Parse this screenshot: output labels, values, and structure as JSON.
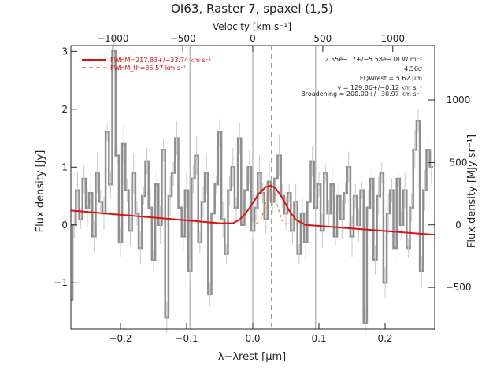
{
  "chart_data": {
    "type": "line",
    "title": "OI63, Raster 7, spaxel (1,5)",
    "xlabel": "λ−λrest [µm]",
    "ylabel_left": "Flux density [Jy]",
    "ylabel_right": "Flux density [MJy sr⁻¹]",
    "xlabel_top": "Velocity [km s⁻¹]",
    "xlim": [
      -0.275,
      0.275
    ],
    "ylim": [
      -1.8,
      3.1
    ],
    "x_ticks": [
      -0.2,
      -0.1,
      0.0,
      0.1,
      0.2
    ],
    "x_tick_labels": [
      "−0.2",
      "−0.1",
      "0.0",
      "0.1",
      "0.2"
    ],
    "y_ticks": [
      -1,
      0,
      1,
      2,
      3
    ],
    "y_tick_labels": [
      "−1",
      "0",
      "1",
      "2",
      "3"
    ],
    "top_ticks_x": [
      -0.2116,
      -0.1058,
      0.0,
      0.1058,
      0.2116
    ],
    "top_tick_labels": [
      "−1000",
      "−500",
      "0",
      "500",
      "1000"
    ],
    "right_ticks_y": [
      -1.08,
      0.0,
      1.08,
      2.16
    ],
    "right_tick_labels": [
      "−500",
      "0",
      "500",
      "1000"
    ],
    "vertical_lines": [
      -0.095,
      0.0,
      0.095
    ],
    "dashed_line_x": 0.028,
    "legend": [
      "FWHM=217.83+/−33.74 km s⁻¹",
      "FWHM_th=86.57 km s⁻¹"
    ],
    "annotations": [
      "2.55e−17+/−5.58e−18 W m⁻²",
      "4.56σ",
      "EQWrest = 5.62 µm",
      "v = 129.86+/−0.12 km s⁻¹",
      "Broadening = 200.00+/−30.97 km s⁻¹"
    ],
    "series": [
      {
        "name": "FWHM=217.83+/−33.74 km s⁻¹",
        "style": "solid",
        "x": [
          -0.275,
          -0.05,
          -0.03,
          -0.02,
          -0.01,
          0.0,
          0.01,
          0.02,
          0.028,
          0.035,
          0.045,
          0.055,
          0.065,
          0.08,
          0.275
        ],
        "y": [
          0.25,
          0.03,
          0.03,
          0.09,
          0.21,
          0.38,
          0.55,
          0.66,
          0.68,
          0.63,
          0.46,
          0.25,
          0.09,
          0.0,
          -0.17
        ]
      },
      {
        "name": "FWHM_th=86.57 km s⁻¹",
        "style": "dashed",
        "x": [
          0.005,
          0.012,
          0.018,
          0.023,
          0.028,
          0.033,
          0.038,
          0.044,
          0.051
        ],
        "y": [
          0.02,
          0.08,
          0.3,
          0.55,
          0.62,
          0.55,
          0.3,
          0.08,
          0.02
        ]
      },
      {
        "name": "data",
        "style": "step",
        "x": [
          -0.275,
          -0.27,
          -0.265,
          -0.26,
          -0.255,
          -0.25,
          -0.245,
          -0.24,
          -0.235,
          -0.23,
          -0.225,
          -0.22,
          -0.215,
          -0.21,
          -0.205,
          -0.2,
          -0.195,
          -0.19,
          -0.185,
          -0.18,
          -0.175,
          -0.17,
          -0.165,
          -0.16,
          -0.155,
          -0.15,
          -0.145,
          -0.14,
          -0.135,
          -0.13,
          -0.125,
          -0.12,
          -0.115,
          -0.11,
          -0.105,
          -0.1,
          -0.095,
          -0.09,
          -0.085,
          -0.08,
          -0.075,
          -0.07,
          -0.065,
          -0.06,
          -0.055,
          -0.05,
          -0.045,
          -0.04,
          -0.035,
          -0.03,
          -0.025,
          -0.02,
          -0.015,
          -0.01,
          -0.005,
          0.0,
          0.005,
          0.01,
          0.015,
          0.02,
          0.025,
          0.03,
          0.035,
          0.04,
          0.045,
          0.05,
          0.055,
          0.06,
          0.065,
          0.07,
          0.075,
          0.08,
          0.085,
          0.09,
          0.095,
          0.1,
          0.105,
          0.11,
          0.115,
          0.12,
          0.125,
          0.13,
          0.135,
          0.14,
          0.145,
          0.15,
          0.155,
          0.16,
          0.165,
          0.17,
          0.175,
          0.18,
          0.185,
          0.19,
          0.195,
          0.2,
          0.205,
          0.21,
          0.215,
          0.22,
          0.225,
          0.23,
          0.235,
          0.24,
          0.245,
          0.25,
          0.255,
          0.26,
          0.265,
          0.27
        ],
        "y": [
          -1.3,
          0.0,
          0.6,
          0.1,
          0.8,
          0.3,
          0.55,
          -0.2,
          0.9,
          0.4,
          0.2,
          1.6,
          0.7,
          3.0,
          1.2,
          -0.3,
          1.4,
          0.6,
          -0.1,
          0.9,
          0.2,
          -0.4,
          0.5,
          1.1,
          0.3,
          -0.6,
          0.7,
          0.0,
          1.3,
          -1.6,
          0.5,
          0.9,
          1.5,
          0.3,
          -0.2,
          0.6,
          -0.8,
          0.8,
          1.2,
          -0.3,
          0.4,
          0.9,
          -1.2,
          0.2,
          0.7,
          1.6,
          0.1,
          -0.5,
          0.6,
          1.0,
          0.3,
          1.5,
          0.0,
          0.6,
          1.0,
          -0.1,
          0.3,
          0.9,
          0.55,
          0.1,
          0.75,
          0.4,
          0.8,
          1.2,
          0.5,
          0.2,
          0.55,
          -0.1,
          0.4,
          -0.5,
          0.2,
          -0.3,
          0.4,
          1.1,
          0.3,
          0.7,
          -0.1,
          0.9,
          0.2,
          0.7,
          -0.2,
          0.5,
          0.1,
          0.55,
          1.0,
          -0.2,
          0.5,
          0.0,
          0.6,
          -1.7,
          0.3,
          0.8,
          -0.6,
          0.5,
          0.9,
          -1.0,
          0.2,
          0.6,
          -0.4,
          0.8,
          0.0,
          0.6,
          -0.4,
          0.3,
          1.3,
          1.8,
          -0.8,
          0.6,
          1.3,
          1.0
        ]
      }
    ],
    "grid": false,
    "legend_position": "top-left"
  }
}
